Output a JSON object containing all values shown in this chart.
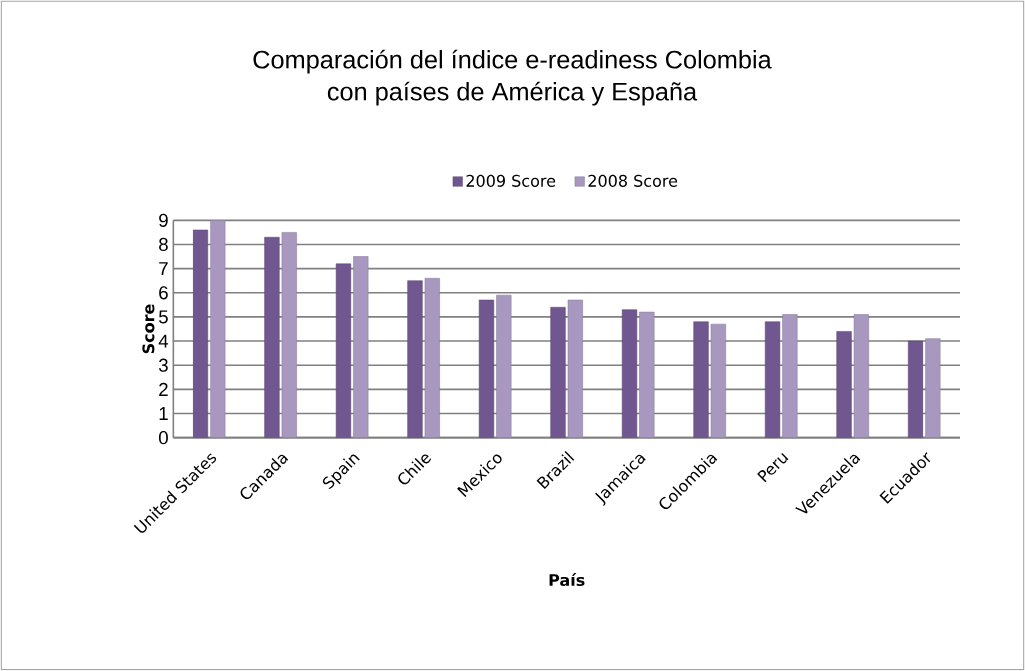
{
  "chart_data": {
    "type": "bar",
    "title": "Comparación del índice e-readiness Colombia\ncon países de América y España",
    "xlabel": "País",
    "ylabel": "Score",
    "categories": [
      "United States",
      "Canada",
      "Spain",
      "Chile",
      "Mexico",
      "Brazil",
      "Jamaica",
      "Colombia",
      "Peru",
      "Venezuela",
      "Ecuador"
    ],
    "series": [
      {
        "name": "2009 Score",
        "color": "#70578f",
        "values": [
          8.6,
          8.3,
          7.2,
          6.5,
          5.7,
          5.4,
          5.3,
          4.8,
          4.8,
          4.4,
          4.0
        ]
      },
      {
        "name": "2008 Score",
        "color": "#a898bf",
        "values": [
          9.0,
          8.5,
          7.5,
          6.6,
          5.9,
          5.7,
          5.2,
          4.7,
          5.1,
          5.1,
          4.1
        ]
      }
    ],
    "ylim": [
      0,
      9
    ],
    "yticks": [
      0,
      1,
      2,
      3,
      4,
      5,
      6,
      7,
      8,
      9
    ],
    "grid": "y",
    "legend": "top"
  }
}
